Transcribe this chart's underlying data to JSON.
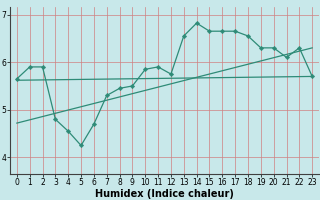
{
  "xlabel": "Humidex (Indice chaleur)",
  "x_values": [
    0,
    1,
    2,
    3,
    4,
    5,
    6,
    7,
    8,
    9,
    10,
    11,
    12,
    13,
    14,
    15,
    16,
    17,
    18,
    19,
    20,
    21,
    22,
    23
  ],
  "y_main": [
    5.65,
    5.9,
    5.9,
    4.8,
    4.55,
    4.25,
    4.7,
    5.3,
    5.45,
    5.5,
    5.85,
    5.9,
    5.75,
    6.55,
    6.82,
    6.65,
    6.65,
    6.65,
    6.55,
    6.3,
    6.3,
    6.1,
    6.3,
    5.7
  ],
  "trend1_x0": 0,
  "trend1_y0": 5.62,
  "trend1_x1": 23,
  "trend1_y1": 5.7,
  "trend2_x0": 0,
  "trend2_y0": 4.72,
  "trend2_x1": 23,
  "trend2_y1": 6.3,
  "line_color": "#2e8b77",
  "bg_color": "#c8e8ea",
  "grid_color": "#d08080",
  "ylim": [
    3.65,
    7.15
  ],
  "xlim": [
    -0.5,
    23.5
  ],
  "yticks": [
    4,
    5,
    6,
    7
  ],
  "xticks": [
    0,
    1,
    2,
    3,
    4,
    5,
    6,
    7,
    8,
    9,
    10,
    11,
    12,
    13,
    14,
    15,
    16,
    17,
    18,
    19,
    20,
    21,
    22,
    23
  ],
  "tick_fontsize": 5.5,
  "xlabel_fontsize": 7.0
}
